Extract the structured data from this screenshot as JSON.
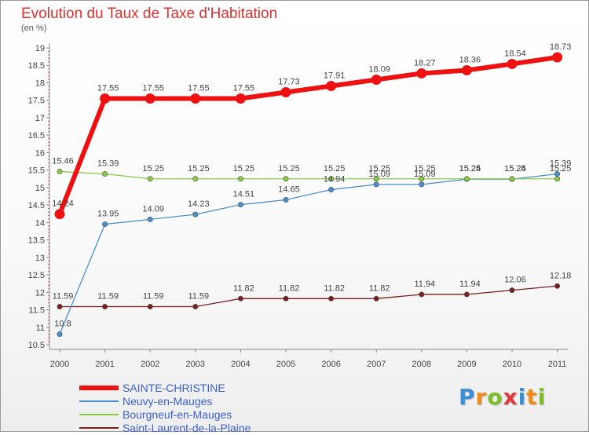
{
  "chart_data": {
    "type": "line",
    "title": "Evolution du Taux de Taxe d'Habitation",
    "subtitle": "(en %)",
    "x": [
      "2000",
      "2001",
      "2002",
      "2003",
      "2004",
      "2005",
      "2006",
      "2007",
      "2008",
      "2009",
      "2010",
      "2011"
    ],
    "ylim": [
      10.5,
      19
    ],
    "yticks": [
      "10.5",
      "11",
      "11.5",
      "12",
      "12.5",
      "13",
      "13.5",
      "14",
      "14.5",
      "15",
      "15.5",
      "16",
      "16.5",
      "17",
      "17.5",
      "18",
      "18.5",
      "19"
    ],
    "grid": false,
    "legend_position": "bottom-left",
    "series": [
      {
        "name": "SAINTE-CHRISTINE",
        "color": "#ee1111",
        "values": [
          14.24,
          17.55,
          17.55,
          17.55,
          17.55,
          17.73,
          17.91,
          18.09,
          18.27,
          18.36,
          18.54,
          18.73
        ],
        "labels": [
          "14.24",
          "17.55",
          "17.55",
          "17.55",
          "17.55",
          "17.73",
          "17.91",
          "18.09",
          "18.27",
          "18.36",
          "18.54",
          "18.73"
        ]
      },
      {
        "name": "Neuvy-en-Mauges",
        "color": "#4a90d0",
        "values": [
          10.8,
          13.95,
          14.09,
          14.23,
          14.51,
          14.65,
          14.94,
          15.09,
          15.09,
          15.24,
          15.24,
          15.39
        ],
        "labels": [
          "10.8",
          "13.95",
          "14.09",
          "14.23",
          "14.51",
          "14.65",
          "14.94",
          "15.09",
          "15.09",
          "15.24",
          "15.24",
          "15.39"
        ]
      },
      {
        "name": "Bourgneuf-en-Mauges",
        "color": "#88cc44",
        "values": [
          15.46,
          15.39,
          15.25,
          15.25,
          15.25,
          15.25,
          15.25,
          15.25,
          15.25,
          15.25,
          15.25,
          15.25
        ],
        "labels": [
          "15.46",
          "15.39",
          "15.25",
          "15.25",
          "15.25",
          "15.25",
          "15.25",
          "15.25",
          "15.25",
          "15.25",
          "15.25",
          "15.25"
        ]
      },
      {
        "name": "Saint-Laurent-de-la-Plaine",
        "color": "#7a1f1f",
        "values": [
          11.59,
          11.59,
          11.59,
          11.59,
          11.82,
          11.82,
          11.82,
          11.82,
          11.94,
          11.94,
          12.06,
          12.18
        ],
        "labels": [
          "11.59",
          "11.59",
          "11.59",
          "11.59",
          "11.82",
          "11.82",
          "11.82",
          "11.82",
          "11.94",
          "11.94",
          "12.06",
          "12.18"
        ]
      }
    ]
  },
  "logo": {
    "letters": [
      "P",
      "r",
      "o",
      "x",
      "i",
      "t",
      "i"
    ],
    "colors": [
      "#3b8fd8",
      "#f08c1a",
      "#7bbf2a",
      "#e03a3a",
      "#3b8fd8",
      "#f08c1a",
      "#7bbf2a"
    ]
  }
}
